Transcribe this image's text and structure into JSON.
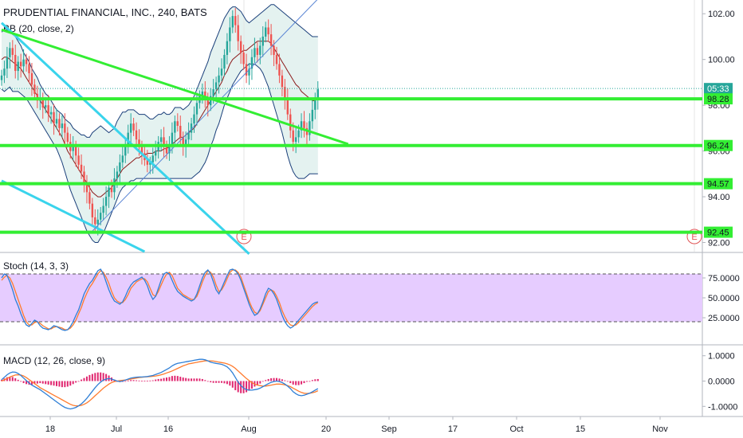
{
  "header": {
    "title": "PRUDENTIAL FINANCIAL, INC., 240, BATS",
    "bb_label": "BB (20, close, 2)",
    "stoch_label": "Stoch (14, 3, 3)",
    "macd_label": "MACD (12, 26, close, 9)"
  },
  "colors": {
    "up": "#26a69a",
    "down": "#ef5350",
    "bb_band": "#1a3f7a",
    "bb_basis": "#8b1a1a",
    "bb_fill": "#d9ece9",
    "green_lines": "#33ee33",
    "cyan_lines": "#3ad4ec",
    "trend_blue": "#5b86d4",
    "stoch_k": "#2f7fd6",
    "stoch_d": "#ff7b2e",
    "stoch_fill": "#e6ccff",
    "macd_line": "#2f7fd6",
    "signal_line": "#ff7b2e",
    "hist": "#e0266f"
  },
  "chart_data": [
    {
      "type": "line",
      "title": "PRUDENTIAL FINANCIAL, INC., 240, BATS",
      "ylim": [
        91.6,
        102.6
      ],
      "y_ticks": [
        "102.00",
        "100.00",
        "98.00",
        "96.00",
        "94.00",
        "92.00"
      ],
      "x_ticks": [
        "18",
        "Jul",
        "16",
        "Aug",
        "20",
        "Sep",
        "17",
        "Oct",
        "15",
        "Nov"
      ],
      "price_labels": [
        {
          "value": 98.73,
          "text": "05:33"
        },
        {
          "value": 98.28,
          "text": "98.28"
        },
        {
          "value": 96.24,
          "text": "96.24"
        },
        {
          "value": 94.57,
          "text": "94.57"
        },
        {
          "value": 92.45,
          "text": "92.45"
        }
      ],
      "horizontal_levels": [
        98.28,
        96.24,
        94.57,
        92.45
      ],
      "earnings_markers": [
        "E",
        "E"
      ],
      "closes": [
        99.3,
        99.6,
        100.1,
        100.5,
        100.2,
        99.5,
        99.9,
        99.7,
        100.0,
        99.8,
        99.4,
        98.9,
        98.5,
        98.2,
        98.3,
        97.9,
        98.0,
        97.6,
        97.7,
        97.2,
        97.4,
        97.0,
        97.2,
        96.8,
        96.4,
        96.0,
        96.2,
        95.8,
        95.4,
        95.1,
        94.6,
        94.2,
        93.7,
        93.1,
        92.8,
        93.0,
        93.3,
        93.6,
        94.0,
        94.4,
        94.2,
        94.8,
        95.1,
        95.5,
        95.8,
        96.3,
        96.8,
        97.2,
        96.9,
        96.5,
        96.2,
        95.9,
        95.6,
        95.4,
        95.5,
        95.8,
        96.0,
        96.4,
        96.6,
        96.2,
        95.9,
        96.3,
        96.8,
        97.3,
        97.1,
        96.6,
        96.2,
        96.5,
        96.8,
        97.2,
        97.6,
        98.1,
        98.4,
        98.6,
        98.3,
        98.0,
        98.4,
        98.7,
        99.0,
        99.3,
        99.6,
        100.2,
        100.8,
        101.4,
        101.9,
        101.5,
        100.8,
        100.3,
        99.8,
        99.3,
        99.6,
        100.1,
        100.5,
        100.2,
        100.6,
        101.0,
        101.4,
        101.1,
        100.6,
        100.2,
        99.8,
        99.3,
        98.8,
        98.3,
        97.6,
        96.9,
        96.4,
        96.6,
        96.9,
        97.3,
        97.0,
        96.7,
        97.3,
        97.8,
        98.3,
        98.7
      ],
      "bb_upper": [
        101.2,
        101.3,
        101.3,
        101.2,
        101.1,
        101.0,
        100.8,
        100.6,
        100.3,
        100.1,
        99.9,
        99.6,
        99.4,
        99.2,
        98.9,
        98.7,
        98.5,
        98.4,
        98.2,
        98.0,
        97.8,
        97.7,
        97.6,
        97.4,
        97.3,
        97.2,
        97.0,
        96.9,
        96.8,
        96.7,
        96.7,
        96.6,
        96.6,
        96.8,
        96.9,
        97.0,
        97.1,
        97.0,
        96.9,
        96.8,
        96.9,
        97.0,
        97.3,
        97.5,
        97.7,
        97.7,
        97.8,
        97.8,
        97.8,
        97.7,
        97.6,
        97.6,
        97.6,
        97.5,
        97.4,
        97.4,
        97.5,
        97.6,
        97.6,
        97.7,
        97.6,
        97.6,
        97.7,
        97.9,
        97.9,
        97.9,
        97.8,
        97.9,
        98.0,
        98.2,
        98.4,
        98.7,
        99.0,
        99.3,
        99.6,
        99.9,
        100.3,
        100.6,
        100.9,
        101.2,
        101.5,
        101.8,
        102.0,
        102.2,
        102.3,
        102.3,
        102.2,
        102.1,
        101.9,
        101.7,
        101.6,
        101.7,
        101.8,
        101.9,
        102.0,
        102.1,
        102.2,
        102.3,
        102.4,
        102.4,
        102.3,
        102.2,
        102.1,
        102.0,
        101.9,
        101.8,
        101.7,
        101.6,
        101.5,
        101.4,
        101.3,
        101.2,
        101.1,
        101.0,
        101.0,
        101.0
      ],
      "bb_basis": [
        100.0,
        100.1,
        100.1,
        100.0,
        99.9,
        99.8,
        99.7,
        99.6,
        99.4,
        99.2,
        99.0,
        98.8,
        98.6,
        98.4,
        98.2,
        98.0,
        97.8,
        97.6,
        97.4,
        97.2,
        97.0,
        96.8,
        96.6,
        96.3,
        96.0,
        95.8,
        95.6,
        95.4,
        95.2,
        95.0,
        94.8,
        94.6,
        94.4,
        94.2,
        94.1,
        94.0,
        94.0,
        94.1,
        94.2,
        94.3,
        94.4,
        94.6,
        94.8,
        95.0,
        95.2,
        95.3,
        95.4,
        95.5,
        95.6,
        95.7,
        95.7,
        95.8,
        95.8,
        95.9,
        95.9,
        95.9,
        96.0,
        96.0,
        96.0,
        96.1,
        96.1,
        96.2,
        96.3,
        96.4,
        96.5,
        96.6,
        96.6,
        96.7,
        96.8,
        96.9,
        97.0,
        97.2,
        97.4,
        97.6,
        97.8,
        98.0,
        98.2,
        98.4,
        98.6,
        98.8,
        99.0,
        99.3,
        99.5,
        99.8,
        100.0,
        100.1,
        100.2,
        100.3,
        100.4,
        100.4,
        100.5,
        100.6,
        100.7,
        100.8,
        100.8,
        100.8,
        100.8,
        100.8,
        100.7,
        100.5,
        100.3,
        100.1,
        99.9,
        99.7,
        99.5,
        99.3,
        99.1,
        98.9,
        98.8,
        98.6,
        98.5,
        98.4,
        98.3,
        98.2,
        98.2,
        98.3
      ],
      "bb_lower": [
        98.7,
        98.6,
        98.7,
        98.8,
        98.6,
        98.6,
        98.6,
        98.5,
        98.4,
        98.3,
        98.1,
        97.9,
        97.7,
        97.5,
        97.3,
        97.1,
        96.9,
        96.7,
        96.5,
        96.3,
        96.1,
        95.8,
        95.5,
        95.1,
        94.7,
        94.3,
        94.0,
        93.7,
        93.4,
        93.1,
        92.8,
        92.5,
        92.3,
        92.1,
        92.0,
        92.0,
        92.2,
        92.4,
        92.7,
        93.0,
        93.3,
        93.6,
        93.9,
        94.2,
        94.4,
        94.5,
        94.6,
        94.7,
        94.7,
        94.8,
        94.8,
        94.8,
        94.8,
        94.8,
        94.8,
        94.8,
        94.8,
        94.8,
        94.8,
        94.8,
        94.8,
        94.8,
        94.8,
        94.8,
        94.8,
        94.8,
        94.8,
        94.8,
        94.8,
        94.8,
        94.9,
        95.0,
        95.1,
        95.3,
        95.5,
        95.8,
        96.2,
        96.5,
        96.9,
        97.2,
        97.6,
        98.0,
        98.3,
        98.6,
        98.9,
        99.1,
        99.3,
        99.5,
        99.6,
        99.7,
        99.8,
        99.8,
        99.8,
        99.7,
        99.6,
        99.4,
        99.1,
        98.8,
        98.4,
        98.0,
        97.6,
        97.2,
        96.8,
        96.3,
        95.8,
        95.4,
        95.1,
        94.9,
        94.8,
        94.8,
        94.8,
        94.9,
        95.0,
        95.0,
        95.0,
        95.0
      ],
      "line_drawings": {
        "green_trend": [
          [
            0,
            101.3
          ],
          [
            126,
            96.3
          ]
        ],
        "blue_trend": [
          [
            33,
            92.5
          ],
          [
            130,
            104.5
          ]
        ],
        "cyan_upper": [
          [
            0,
            101.6
          ],
          [
            90,
            91.5
          ]
        ],
        "cyan_lower": [
          [
            0,
            94.7
          ],
          [
            52,
            91.6
          ]
        ]
      }
    },
    {
      "type": "line",
      "title": "Stoch (14, 3, 3)",
      "ylim": [
        0,
        100
      ],
      "y_ticks": [
        "75.0000",
        "50.0000",
        "25.0000"
      ],
      "bands": [
        20,
        80
      ],
      "series": [
        {
          "name": "%K",
          "values": [
            75,
            80,
            78,
            70,
            60,
            48,
            40,
            30,
            22,
            16,
            14,
            18,
            22,
            20,
            15,
            12,
            11,
            10,
            12,
            15,
            14,
            12,
            10,
            9,
            10,
            14,
            20,
            28,
            35,
            45,
            55,
            62,
            68,
            72,
            78,
            84,
            86,
            80,
            70,
            60,
            52,
            46,
            44,
            42,
            45,
            52,
            60,
            66,
            70,
            72,
            74,
            76,
            72,
            65,
            55,
            48,
            52,
            62,
            72,
            80,
            82,
            80,
            72,
            64,
            58,
            55,
            52,
            50,
            48,
            46,
            48,
            55,
            65,
            75,
            82,
            85,
            80,
            70,
            60,
            55,
            62,
            70,
            78,
            85,
            86,
            84,
            80,
            72,
            62,
            52,
            42,
            34,
            28,
            30,
            36,
            45,
            55,
            62,
            60,
            55,
            48,
            38,
            28,
            20,
            15,
            12,
            14,
            18,
            22,
            26,
            30,
            34,
            38,
            42,
            44,
            45
          ]
        },
        {
          "name": "%D",
          "values": [
            72,
            76,
            78,
            75,
            68,
            58,
            48,
            38,
            28,
            20,
            16,
            16,
            19,
            20,
            18,
            15,
            13,
            11,
            11,
            13,
            14,
            13,
            12,
            10,
            10,
            12,
            16,
            22,
            30,
            38,
            48,
            56,
            63,
            68,
            74,
            80,
            84,
            82,
            76,
            68,
            58,
            50,
            46,
            44,
            44,
            48,
            54,
            62,
            66,
            70,
            72,
            74,
            74,
            70,
            62,
            54,
            52,
            58,
            66,
            74,
            80,
            82,
            78,
            70,
            62,
            58,
            54,
            52,
            50,
            48,
            48,
            52,
            60,
            70,
            78,
            84,
            82,
            76,
            66,
            58,
            60,
            66,
            74,
            82,
            85,
            85,
            82,
            76,
            66,
            56,
            46,
            38,
            32,
            30,
            34,
            42,
            50,
            58,
            60,
            58,
            52,
            44,
            34,
            26,
            20,
            16,
            15,
            16,
            19,
            23,
            27,
            31,
            35,
            39,
            42,
            44
          ]
        }
      ]
    },
    {
      "type": "line",
      "title": "MACD (12, 26, close, 9)",
      "ylim": [
        -1.4,
        1.4
      ],
      "y_ticks": [
        "1.0000",
        "0.0000",
        "-1.0000"
      ],
      "series": [
        {
          "name": "MACD",
          "values": [
            0.05,
            0.15,
            0.25,
            0.32,
            0.36,
            0.35,
            0.3,
            0.22,
            0.12,
            0.02,
            -0.08,
            -0.16,
            -0.22,
            -0.28,
            -0.34,
            -0.42,
            -0.5,
            -0.58,
            -0.66,
            -0.74,
            -0.82,
            -0.9,
            -0.98,
            -1.04,
            -1.08,
            -1.1,
            -1.08,
            -1.04,
            -0.98,
            -0.9,
            -0.8,
            -0.68,
            -0.54,
            -0.4,
            -0.26,
            -0.14,
            -0.04,
            0.04,
            0.08,
            0.1,
            0.08,
            0.04,
            0.0,
            -0.02,
            0.0,
            0.04,
            0.08,
            0.12,
            0.14,
            0.15,
            0.16,
            0.16,
            0.17,
            0.18,
            0.2,
            0.22,
            0.26,
            0.3,
            0.34,
            0.4,
            0.46,
            0.52,
            0.6,
            0.66,
            0.7,
            0.72,
            0.74,
            0.76,
            0.78,
            0.8,
            0.82,
            0.84,
            0.86,
            0.86,
            0.84,
            0.8,
            0.75,
            0.72,
            0.7,
            0.68,
            0.66,
            0.62,
            0.56,
            0.46,
            0.32,
            0.14,
            -0.04,
            -0.18,
            -0.28,
            -0.34,
            -0.36,
            -0.36,
            -0.34,
            -0.32,
            -0.28,
            -0.22,
            -0.16,
            -0.1,
            -0.05,
            -0.02,
            0.0,
            -0.02,
            -0.06,
            -0.12,
            -0.2,
            -0.3,
            -0.42,
            -0.5,
            -0.56,
            -0.58,
            -0.56,
            -0.52,
            -0.48,
            -0.42,
            -0.36,
            -0.3
          ]
        },
        {
          "name": "Signal",
          "values": [
            0.0,
            0.05,
            0.1,
            0.16,
            0.2,
            0.24,
            0.25,
            0.24,
            0.2,
            0.14,
            0.06,
            -0.02,
            -0.1,
            -0.18,
            -0.26,
            -0.32,
            -0.38,
            -0.44,
            -0.5,
            -0.56,
            -0.62,
            -0.68,
            -0.74,
            -0.8,
            -0.86,
            -0.92,
            -0.96,
            -0.98,
            -0.98,
            -0.96,
            -0.92,
            -0.86,
            -0.78,
            -0.68,
            -0.58,
            -0.48,
            -0.38,
            -0.28,
            -0.2,
            -0.12,
            -0.06,
            -0.02,
            0.0,
            0.02,
            0.03,
            0.04,
            0.06,
            0.08,
            0.1,
            0.12,
            0.14,
            0.15,
            0.16,
            0.17,
            0.18,
            0.19,
            0.2,
            0.22,
            0.25,
            0.28,
            0.32,
            0.36,
            0.4,
            0.45,
            0.5,
            0.55,
            0.6,
            0.64,
            0.68,
            0.7,
            0.72,
            0.74,
            0.76,
            0.78,
            0.8,
            0.8,
            0.8,
            0.79,
            0.77,
            0.75,
            0.73,
            0.71,
            0.68,
            0.64,
            0.58,
            0.5,
            0.4,
            0.3,
            0.2,
            0.1,
            0.02,
            -0.06,
            -0.12,
            -0.16,
            -0.18,
            -0.2,
            -0.2,
            -0.18,
            -0.16,
            -0.14,
            -0.12,
            -0.12,
            -0.13,
            -0.15,
            -0.18,
            -0.22,
            -0.28,
            -0.34,
            -0.4,
            -0.45,
            -0.48,
            -0.49,
            -0.48,
            -0.46,
            -0.43,
            -0.38
          ]
        }
      ]
    }
  ]
}
